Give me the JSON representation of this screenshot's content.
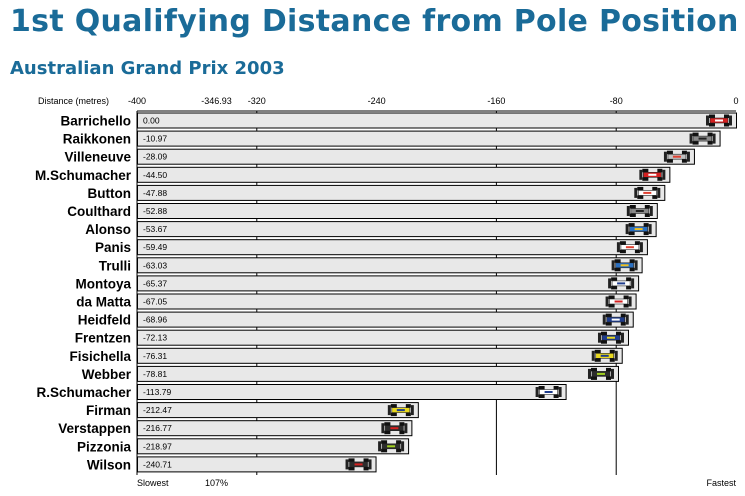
{
  "header": {
    "title": "1st Qualifying Distance from Pole Position",
    "subtitle": "Australian Grand Prix 2003"
  },
  "chart_data": {
    "type": "bar",
    "title": "1st Qualifying Distance from Pole Position",
    "subtitle": "Australian Grand Prix 2003",
    "xlabel": "Distance (metres)",
    "xlim": [
      -400,
      0
    ],
    "x_ticks": [
      -400,
      -346.93,
      -320,
      -240,
      -160,
      -80,
      0
    ],
    "x_tick_labels": [
      "-400",
      "-346.93",
      "-320",
      "-240",
      "-160",
      "-80",
      "0"
    ],
    "gridlines": [
      -320,
      -160,
      -80
    ],
    "bottom_labels": {
      "left": "Slowest",
      "marker": "107%",
      "right": "Fastest"
    },
    "colors": {
      "title": "#1a6b98",
      "bar_fill": "#e8e8e8",
      "bar_stroke": "#000000"
    },
    "categories": [
      "Barrichello",
      "Raikkonen",
      "Villeneuve",
      "M.Schumacher",
      "Button",
      "Coulthard",
      "Alonso",
      "Panis",
      "Trulli",
      "Montoya",
      "da Matta",
      "Heidfeld",
      "Frentzen",
      "Fisichella",
      "Webber",
      "R.Schumacher",
      "Firman",
      "Verstappen",
      "Pizzonia",
      "Wilson"
    ],
    "values": [
      0.0,
      -10.97,
      -28.09,
      -44.5,
      -47.88,
      -52.88,
      -53.67,
      -59.49,
      -63.03,
      -65.37,
      -67.05,
      -68.96,
      -72.13,
      -76.31,
      -78.81,
      -113.79,
      -212.47,
      -216.77,
      -218.97,
      -240.71
    ],
    "value_labels": [
      "0.00",
      "-10.97",
      "-28.09",
      "-44.50",
      "-47.88",
      "-52.88",
      "-53.67",
      "-59.49",
      "-63.03",
      "-65.37",
      "-67.05",
      "-68.96",
      "-72.13",
      "-76.31",
      "-78.81",
      "-113.79",
      "-212.47",
      "-216.77",
      "-218.97",
      "-240.71"
    ],
    "car_colors": [
      "#d42020",
      "#8a8a8a",
      "#c0c0c0",
      "#d42020",
      "#ffffff",
      "#8a8a8a",
      "#2a6fc0",
      "#ffffff",
      "#2a6fc0",
      "#ffffff",
      "#ffffff",
      "#1e3c8c",
      "#1e3c8c",
      "#e8d820",
      "#2c2c2c",
      "#ffffff",
      "#e8d820",
      "#2c2c2c",
      "#2c2c2c",
      "#2c2c2c"
    ],
    "car_accents": [
      "#ffffff",
      "#202020",
      "#e04030",
      "#ffffff",
      "#e04030",
      "#202020",
      "#f0c020",
      "#e04030",
      "#f0c020",
      "#1e3c8c",
      "#d42020",
      "#ffffff",
      "#e8d820",
      "#1e3c8c",
      "#a0d020",
      "#1e3c8c",
      "#1e3c8c",
      "#d42020",
      "#a0d020",
      "#d42020"
    ]
  }
}
